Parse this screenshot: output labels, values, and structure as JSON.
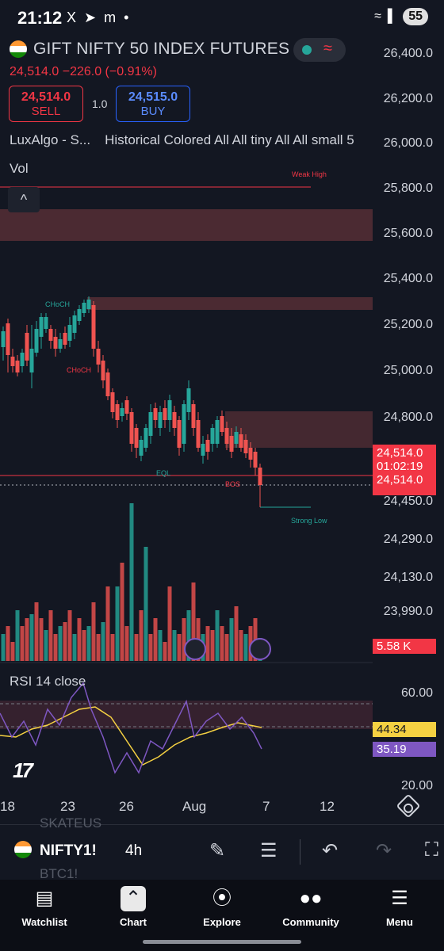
{
  "status_bar": {
    "time": "21:12",
    "icons": [
      "X",
      "telegram-icon",
      "m",
      "•"
    ],
    "battery": "55"
  },
  "header": {
    "title": "GIFT NIFTY 50 INDEX FUTURES",
    "price_change": "24,514.0  −226.0 (−0.91%)",
    "sell_price": "24,514.0",
    "sell_label": "SELL",
    "spread": "1.0",
    "buy_price": "24,515.0",
    "buy_label": "BUY",
    "indicator_name": "LuxAlgo - S...",
    "indicator_settings": "Historical Colored All All tiny All All small 5",
    "vol_label": "Vol",
    "collapse_glyph": "^"
  },
  "price_axis": [
    "26,400.0",
    "26,200.0",
    "26,000.0",
    "25,800.0",
    "25,600.0",
    "25,400.0",
    "25,200.0",
    "25,000.0",
    "24,800.0",
    "24,450.0",
    "24,290.0",
    "24,130.0",
    "23,990.0"
  ],
  "price_tag": {
    "price": "24,514.0",
    "countdown": "01:02:19",
    "price2": "24,514.0",
    "volume": "5.58 K"
  },
  "chart_annotations": {
    "weak_high": "Weak High",
    "choch_1": "CHoCH",
    "choch_2": "CHoCH",
    "eql": "EQL",
    "bos": "BOS",
    "strong_low": "Strong Low"
  },
  "rsi": {
    "label": "RSI 14 close",
    "axis_top": "60.00",
    "axis_bottom": "20.00",
    "value_1": "44.34",
    "value_2": "35.19",
    "color_1": "#f5d142",
    "color_2": "#7e57c2"
  },
  "x_axis": [
    "18",
    "23",
    "26",
    "Aug",
    "7",
    "12"
  ],
  "toolbar": {
    "symbol": "NIFTY1!",
    "interval": "4h",
    "ghost_top": "SKATEUS",
    "ghost_bottom": "BTC1!"
  },
  "bottom_nav": [
    {
      "label": "Watchlist",
      "icon": "watchlist-icon"
    },
    {
      "label": "Chart",
      "icon": "chart-icon"
    },
    {
      "label": "Explore",
      "icon": "compass-icon"
    },
    {
      "label": "Community",
      "icon": "community-icon"
    },
    {
      "label": "Menu",
      "icon": "menu-icon"
    }
  ],
  "colors": {
    "background": "#131722",
    "up": "#26a69a",
    "down": "#ef5350",
    "accent_red": "#f23645",
    "accent_blue": "#2962ff"
  }
}
